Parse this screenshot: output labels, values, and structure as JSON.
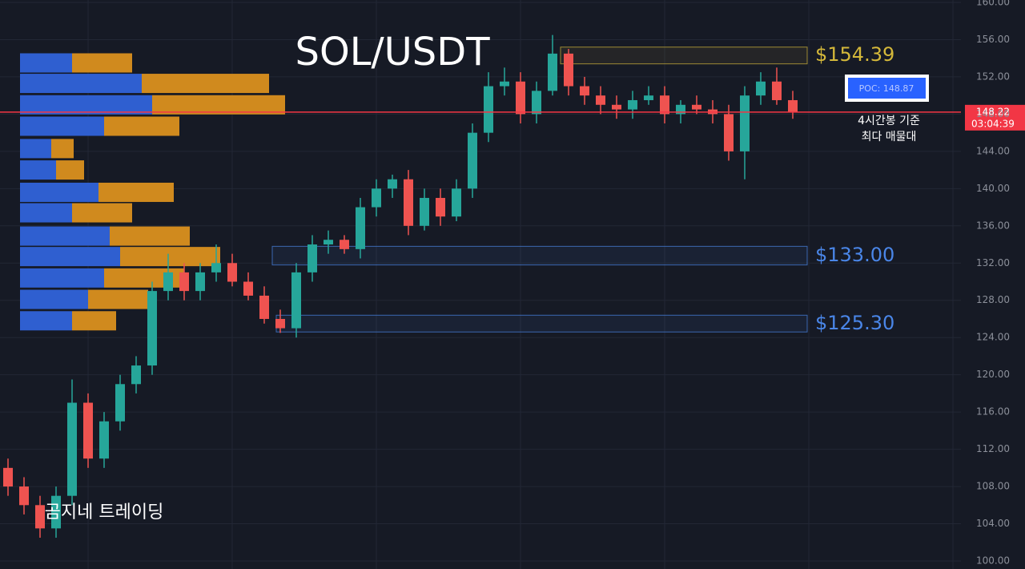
{
  "chart_data": {
    "type": "candlestick",
    "title": "SOL/USDT",
    "watermark": "곰지네 트레이딩",
    "up_color": "#26a69a",
    "down_color": "#ef5350",
    "grid": true,
    "ylim": [
      100,
      160
    ],
    "yticks": [
      {
        "value": 100,
        "label": "100.00"
      },
      {
        "value": 104,
        "label": "104.00"
      },
      {
        "value": 108,
        "label": "108.00"
      },
      {
        "value": 112,
        "label": "112.00"
      },
      {
        "value": 116,
        "label": "116.00"
      },
      {
        "value": 120,
        "label": "120.00"
      },
      {
        "value": 124,
        "label": "124.00"
      },
      {
        "value": 128,
        "label": "128.00"
      },
      {
        "value": 132,
        "label": "132.00"
      },
      {
        "value": 136,
        "label": "136.00"
      },
      {
        "value": 140,
        "label": "140.00"
      },
      {
        "value": 144,
        "label": "144.00"
      },
      {
        "value": 148,
        "label": "148.00"
      },
      {
        "value": 152,
        "label": "152.00"
      },
      {
        "value": 156,
        "label": "156.00"
      },
      {
        "value": 160,
        "label": "160.00"
      }
    ],
    "open": [
      110,
      108,
      106,
      103.5,
      107,
      117,
      111,
      115,
      119,
      121,
      129,
      131,
      129,
      131,
      132,
      130,
      128.5,
      126,
      125,
      131,
      134,
      134.5,
      133.5,
      138,
      140,
      141,
      136,
      139,
      137,
      140,
      146,
      151,
      151.5,
      148,
      150.5,
      154.5,
      151,
      150,
      149,
      148.5,
      149.5,
      150,
      148,
      149,
      148.5,
      148,
      144,
      150,
      151.5,
      149.5
    ],
    "high": [
      111,
      109,
      107,
      108,
      119.5,
      118,
      116,
      120,
      122,
      130,
      133,
      132,
      132,
      134,
      133,
      131,
      129.5,
      127,
      132,
      135,
      135.5,
      135,
      139,
      141,
      141.5,
      142,
      140,
      140,
      141,
      147,
      152.5,
      153,
      152.5,
      151.5,
      156.5,
      155,
      152,
      151,
      150,
      150.5,
      151,
      151,
      149.5,
      150,
      149.5,
      149,
      151,
      152.5,
      153,
      150.5
    ],
    "low": [
      107,
      105,
      102.5,
      102.5,
      106,
      110,
      110,
      114,
      118,
      120,
      128,
      128,
      128,
      130,
      129.5,
      128,
      125.5,
      124.5,
      124,
      130,
      133,
      133,
      132.5,
      137,
      139,
      135,
      135.5,
      136,
      136.5,
      139,
      145,
      150,
      147,
      147,
      150,
      150,
      149,
      148,
      147.5,
      147.5,
      149,
      147,
      147,
      148,
      147,
      143,
      141,
      149,
      149,
      147.5
    ],
    "close": [
      108,
      106,
      103.5,
      107,
      117,
      111,
      115,
      119,
      121,
      129,
      131,
      129,
      131,
      132,
      130,
      128.5,
      126,
      125,
      131,
      134,
      134.5,
      133.5,
      138,
      140,
      141,
      136,
      139,
      137,
      140,
      146,
      151,
      151.5,
      148,
      150.5,
      154.5,
      151,
      150,
      149,
      148.5,
      149.5,
      150,
      148,
      149,
      148.5,
      148,
      144,
      150,
      151.5,
      149.5,
      148.22
    ],
    "last_price": 148.22,
    "last_price_color": "#f23645",
    "countdown": "03:04:39",
    "poc_label": "POC: 148.87",
    "poc_note": [
      "4시간봉 기준",
      "최다 매물대"
    ],
    "zones": [
      {
        "label": "$154.39",
        "low": 153.4,
        "high": 155.2,
        "color": "#d4b83a"
      },
      {
        "label": "$133.00",
        "low": 131.8,
        "high": 133.8,
        "color": "#4a86e8"
      },
      {
        "label": "$125.30",
        "low": 124.6,
        "high": 126.4,
        "color": "#4a86e8"
      }
    ],
    "volume_profile": {
      "buy_color": "#2f5fd0",
      "sell_color": "#d08a1e",
      "levels": [
        153.5,
        151.3,
        149.0,
        146.7,
        144.3,
        142.0,
        139.6,
        137.4,
        134.9,
        132.7,
        130.4,
        128.1,
        125.8
      ],
      "buy": [
        65,
        152,
        165,
        105,
        39,
        45,
        98,
        65,
        112,
        125,
        105,
        85,
        65
      ],
      "sell": [
        75,
        159,
        166,
        94,
        28,
        35,
        94,
        75,
        100,
        125,
        100,
        75,
        55
      ]
    }
  }
}
